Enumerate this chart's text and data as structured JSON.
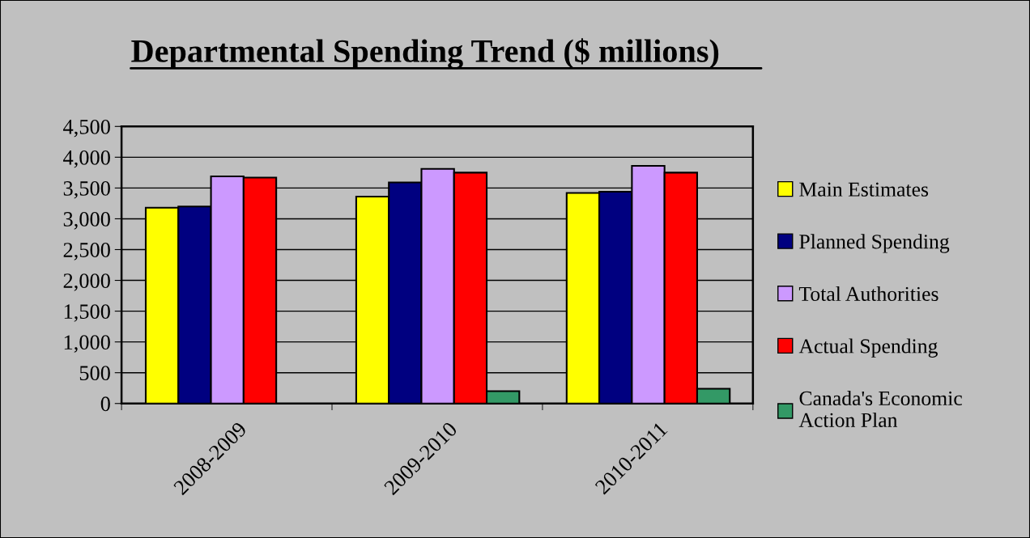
{
  "chart_data": {
    "type": "bar",
    "title": "Departmental Spending Trend ($ millions)",
    "categories": [
      "2008-2009",
      "2009-2010",
      "2010-2011"
    ],
    "series": [
      {
        "name": "Main Estimates",
        "color": "#ffff00",
        "values": [
          3180,
          3360,
          3420
        ]
      },
      {
        "name": "Planned Spending",
        "color": "#000080",
        "values": [
          3200,
          3590,
          3440
        ]
      },
      {
        "name": "Total Authorities",
        "color": "#cc99ff",
        "values": [
          3690,
          3810,
          3860
        ]
      },
      {
        "name": "Actual Spending",
        "color": "#ff0000",
        "values": [
          3670,
          3750,
          3750
        ]
      },
      {
        "name": "Canada's Economic Action Plan",
        "color": "#339966",
        "values": [
          null,
          200,
          240
        ]
      }
    ],
    "ylim": [
      0,
      4500
    ],
    "yticks": [
      0,
      500,
      {
        "value": 1000,
        "label": "1,000"
      },
      {
        "value": 1500,
        "label": "1,500"
      },
      {
        "value": 2000,
        "label": "2,000"
      },
      {
        "value": 2500,
        "label": "2,500"
      },
      {
        "value": 3000,
        "label": "3,000"
      },
      {
        "value": 3500,
        "label": "3,500"
      },
      {
        "value": 4000,
        "label": "4,000"
      },
      {
        "value": 4500,
        "label": "4,500"
      }
    ],
    "grid": "y",
    "legend": "right"
  }
}
